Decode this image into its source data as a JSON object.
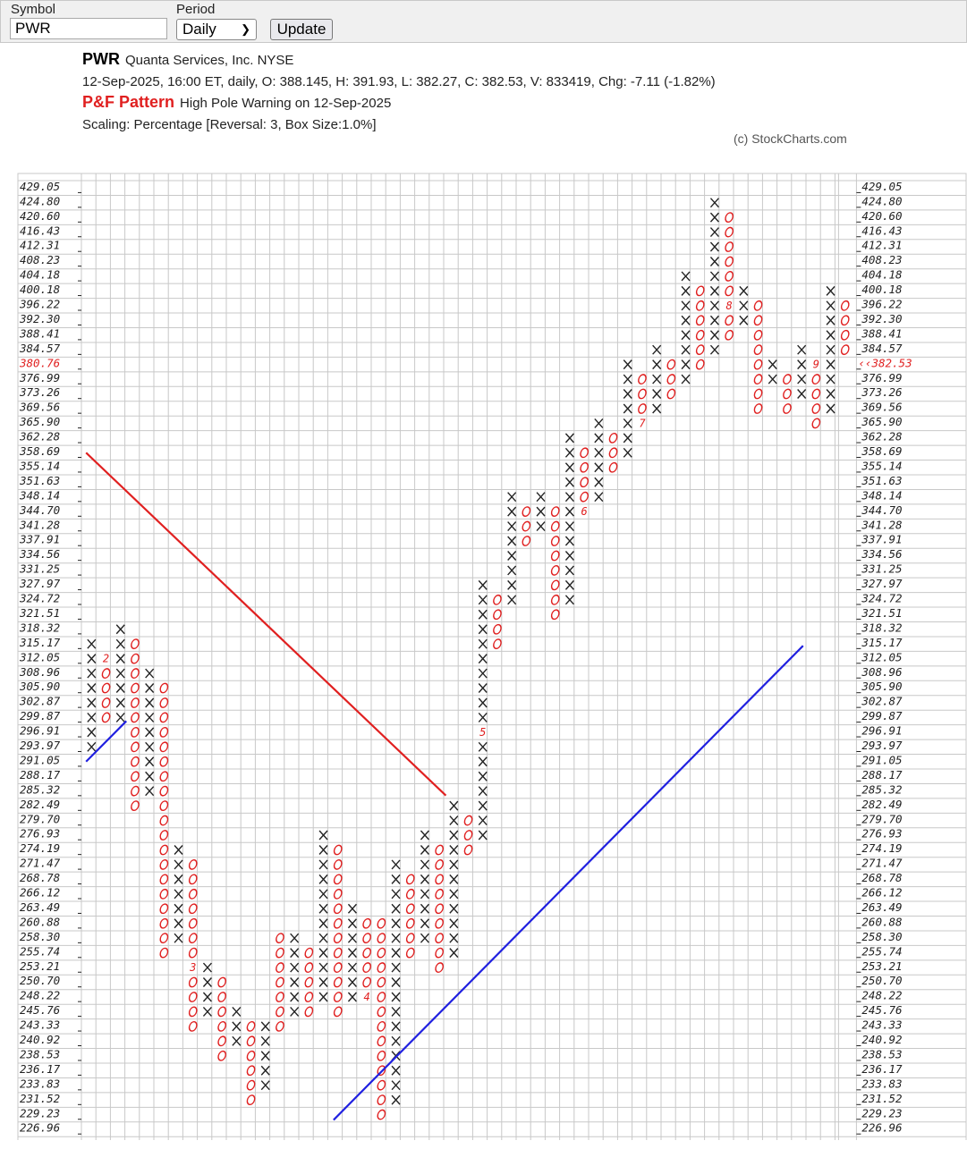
{
  "toolbar": {
    "symbol_label": "Symbol",
    "symbol_value": "PWR",
    "period_label": "Period",
    "period_value": "Daily",
    "update_label": "Update"
  },
  "header": {
    "symbol": "PWR",
    "company": "Quanta Services, Inc.  NYSE",
    "quote_line": "12-Sep-2025, 16:00 ET, daily, O: 388.145, H: 391.93, L: 382.27, C: 382.53, V: 833419, Chg: -7.11 (-1.82%)",
    "pattern_label": "P&F Pattern",
    "pattern_text": "High Pole Warning on 12-Sep-2025",
    "scaling": "Scaling: Percentage [Reversal: 3, Box Size:1.0%]",
    "copyright": "(c) StockCharts.com"
  },
  "chart_data": {
    "type": "point-and-figure",
    "colors": {
      "x": "#222222",
      "o": "#e02020",
      "month": "#e02020",
      "resistance": "#e02020",
      "support": "#2020e0",
      "grid": "#c8c8c8"
    },
    "price_levels": [
      "429.05",
      "424.80",
      "420.60",
      "416.43",
      "412.31",
      "408.23",
      "404.18",
      "400.18",
      "396.22",
      "392.30",
      "388.41",
      "384.57",
      "380.76",
      "376.99",
      "373.26",
      "369.56",
      "365.90",
      "362.28",
      "358.69",
      "355.14",
      "351.63",
      "348.14",
      "344.70",
      "341.28",
      "337.91",
      "334.56",
      "331.25",
      "327.97",
      "324.72",
      "321.51",
      "318.32",
      "315.17",
      "312.05",
      "308.96",
      "305.90",
      "302.87",
      "299.87",
      "296.91",
      "293.97",
      "291.05",
      "288.17",
      "285.32",
      "282.49",
      "279.70",
      "276.93",
      "274.19",
      "271.47",
      "268.78",
      "266.12",
      "263.49",
      "260.88",
      "258.30",
      "255.74",
      "253.21",
      "250.70",
      "248.22",
      "245.76",
      "243.33",
      "240.92",
      "238.53",
      "236.17",
      "233.83",
      "231.52",
      "229.23",
      "226.96"
    ],
    "highlight_price": "380.76",
    "current_price_label": "382.53",
    "columns": [
      {
        "t": "X",
        "top": "315.17",
        "bottom": "293.97"
      },
      {
        "t": "O",
        "top": "312.05",
        "bottom": "299.87",
        "marks": {
          "312.05": "2"
        }
      },
      {
        "t": "X",
        "top": "318.32",
        "bottom": "299.87"
      },
      {
        "t": "O",
        "top": "315.17",
        "bottom": "282.49"
      },
      {
        "t": "X",
        "top": "308.96",
        "bottom": "285.32"
      },
      {
        "t": "O",
        "top": "305.90",
        "bottom": "255.74"
      },
      {
        "t": "X",
        "top": "274.19",
        "bottom": "258.30"
      },
      {
        "t": "O",
        "top": "271.47",
        "bottom": "243.33",
        "marks": {
          "253.21": "3"
        }
      },
      {
        "t": "X",
        "top": "253.21",
        "bottom": "245.76"
      },
      {
        "t": "O",
        "top": "250.70",
        "bottom": "238.53"
      },
      {
        "t": "X",
        "top": "245.76",
        "bottom": "240.92"
      },
      {
        "t": "O",
        "top": "243.33",
        "bottom": "231.52"
      },
      {
        "t": "X",
        "top": "243.33",
        "bottom": "233.83"
      },
      {
        "t": "O",
        "top": "258.30",
        "bottom": "243.33"
      },
      {
        "t": "X",
        "top": "258.30",
        "bottom": "245.76"
      },
      {
        "t": "O",
        "top": "255.74",
        "bottom": "245.76"
      },
      {
        "t": "X",
        "top": "276.93",
        "bottom": "248.22"
      },
      {
        "t": "O",
        "top": "274.19",
        "bottom": "245.76"
      },
      {
        "t": "X",
        "top": "263.49",
        "bottom": "248.22"
      },
      {
        "t": "O",
        "top": "260.88",
        "bottom": "248.22",
        "marks": {
          "248.22": "4"
        }
      },
      {
        "t": "O",
        "top": "260.88",
        "bottom": "229.23"
      },
      {
        "t": "X",
        "top": "271.47",
        "bottom": "231.52"
      },
      {
        "t": "O",
        "top": "268.78",
        "bottom": "255.74"
      },
      {
        "t": "X",
        "top": "276.93",
        "bottom": "258.30"
      },
      {
        "t": "O",
        "top": "274.19",
        "bottom": "253.21"
      },
      {
        "t": "X",
        "top": "282.49",
        "bottom": "255.74"
      },
      {
        "t": "O",
        "top": "279.70",
        "bottom": "274.19"
      },
      {
        "t": "X",
        "top": "327.97",
        "bottom": "276.93",
        "marks": {
          "296.91": "5"
        }
      },
      {
        "t": "O",
        "top": "324.72",
        "bottom": "315.17"
      },
      {
        "t": "X",
        "top": "348.14",
        "bottom": "324.72"
      },
      {
        "t": "O",
        "top": "344.70",
        "bottom": "337.91"
      },
      {
        "t": "X",
        "top": "348.14",
        "bottom": "341.28"
      },
      {
        "t": "O",
        "top": "344.70",
        "bottom": "321.51"
      },
      {
        "t": "X",
        "top": "362.28",
        "bottom": "324.72"
      },
      {
        "t": "O",
        "top": "358.69",
        "bottom": "344.70",
        "marks": {
          "344.70": "6"
        }
      },
      {
        "t": "X",
        "top": "365.90",
        "bottom": "348.14"
      },
      {
        "t": "O",
        "top": "362.28",
        "bottom": "355.14"
      },
      {
        "t": "X",
        "top": "380.76",
        "bottom": "358.69"
      },
      {
        "t": "O",
        "top": "376.99",
        "bottom": "365.90",
        "marks": {
          "365.90": "7"
        }
      },
      {
        "t": "X",
        "top": "384.57",
        "bottom": "369.56"
      },
      {
        "t": "O",
        "top": "380.76",
        "bottom": "373.26"
      },
      {
        "t": "X",
        "top": "404.18",
        "bottom": "376.99"
      },
      {
        "t": "O",
        "top": "400.18",
        "bottom": "380.76"
      },
      {
        "t": "X",
        "top": "424.80",
        "bottom": "384.57"
      },
      {
        "t": "O",
        "top": "420.60",
        "bottom": "388.41",
        "marks": {
          "396.22": "8"
        }
      },
      {
        "t": "X",
        "top": "400.18",
        "bottom": "392.30"
      },
      {
        "t": "O",
        "top": "396.22",
        "bottom": "369.56"
      },
      {
        "t": "X",
        "top": "380.76",
        "bottom": "376.99"
      },
      {
        "t": "O",
        "top": "376.99",
        "bottom": "369.56"
      },
      {
        "t": "X",
        "top": "384.57",
        "bottom": "373.26"
      },
      {
        "t": "O",
        "top": "380.76",
        "bottom": "365.90",
        "marks": {
          "380.76": "9"
        }
      },
      {
        "t": "X",
        "top": "400.18",
        "bottom": "369.56"
      },
      {
        "t": "O",
        "top": "396.22",
        "bottom": "384.57"
      }
    ]
  }
}
